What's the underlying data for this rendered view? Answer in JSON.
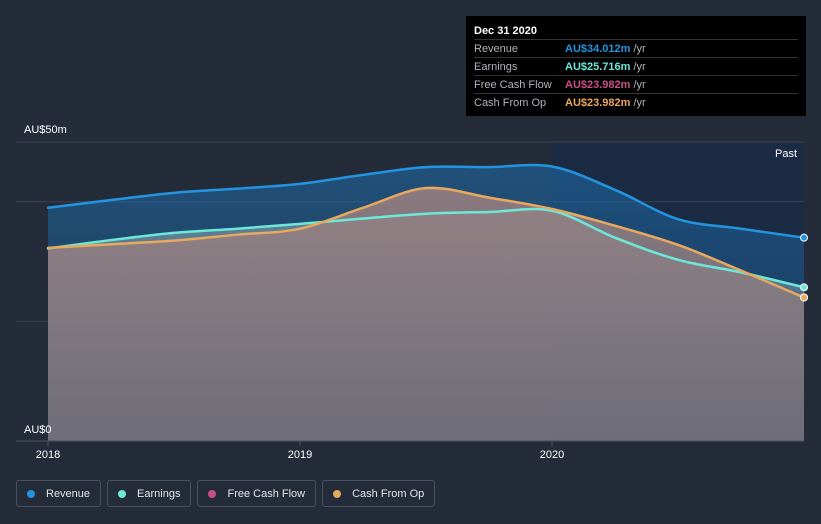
{
  "tooltip": {
    "date": "Dec 31 2020",
    "rows": [
      {
        "name": "Revenue",
        "value": "AU$34.012m",
        "unit": "/yr",
        "color": "#2394df"
      },
      {
        "name": "Earnings",
        "value": "AU$25.716m",
        "unit": "/yr",
        "color": "#6ce8d8"
      },
      {
        "name": "Free Cash Flow",
        "value": "AU$23.982m",
        "unit": "/yr",
        "color": "#c94f86"
      },
      {
        "name": "Cash From Op",
        "value": "AU$23.982m",
        "unit": "/yr",
        "color": "#e8a85e"
      }
    ]
  },
  "legend": [
    {
      "label": "Revenue",
      "color": "#2394df"
    },
    {
      "label": "Earnings",
      "color": "#6ce8d8"
    },
    {
      "label": "Free Cash Flow",
      "color": "#c94f86"
    },
    {
      "label": "Cash From Op",
      "color": "#e8a85e"
    }
  ],
  "chart_data": {
    "type": "area",
    "y_top_label": "AU$50m",
    "y_bottom_label": "AU$0",
    "past_label": "Past",
    "ylim": [
      0,
      50
    ],
    "xlim": [
      2018.0,
      2021.0
    ],
    "x_ticks": [
      {
        "label": "2018",
        "x": 2018.0
      },
      {
        "label": "2019",
        "x": 2019.0
      },
      {
        "label": "2020",
        "x": 2020.0
      }
    ],
    "past_region_start": 2020.0,
    "series": [
      {
        "name": "Revenue",
        "color": "#2394df",
        "x": [
          2018.0,
          2018.25,
          2018.5,
          2018.75,
          2019.0,
          2019.25,
          2019.5,
          2019.75,
          2020.0,
          2020.25,
          2020.5,
          2020.75,
          2021.0
        ],
        "y": [
          39.0,
          40.3,
          41.5,
          42.2,
          43.0,
          44.5,
          45.8,
          45.8,
          45.9,
          42.0,
          37.1,
          35.5,
          34.0
        ]
      },
      {
        "name": "Earnings",
        "color": "#6ce8d8",
        "x": [
          2018.0,
          2018.25,
          2018.5,
          2018.75,
          2019.0,
          2019.25,
          2019.5,
          2019.75,
          2020.0,
          2020.25,
          2020.5,
          2020.75,
          2021.0
        ],
        "y": [
          32.2,
          33.6,
          34.8,
          35.5,
          36.3,
          37.2,
          38.0,
          38.3,
          38.5,
          34.0,
          30.3,
          28.2,
          25.7
        ]
      },
      {
        "name": "Free Cash Flow",
        "color": "#c94f86",
        "x": [
          2018.0,
          2018.25,
          2018.5,
          2018.75,
          2019.0,
          2019.25,
          2019.5,
          2019.75,
          2020.0,
          2020.25,
          2020.5,
          2020.75,
          2021.0
        ],
        "y": [
          32.3,
          32.9,
          33.5,
          34.5,
          35.5,
          39.0,
          42.3,
          40.7,
          38.8,
          36.0,
          32.8,
          28.5,
          24.0
        ]
      },
      {
        "name": "Cash From Op",
        "color": "#e8a85e",
        "x": [
          2018.0,
          2018.25,
          2018.5,
          2018.75,
          2019.0,
          2019.25,
          2019.5,
          2019.75,
          2020.0,
          2020.25,
          2020.5,
          2020.75,
          2021.0
        ],
        "y": [
          32.3,
          32.9,
          33.5,
          34.5,
          35.5,
          39.0,
          42.3,
          40.7,
          38.8,
          36.0,
          32.8,
          28.5,
          24.0
        ]
      }
    ]
  }
}
